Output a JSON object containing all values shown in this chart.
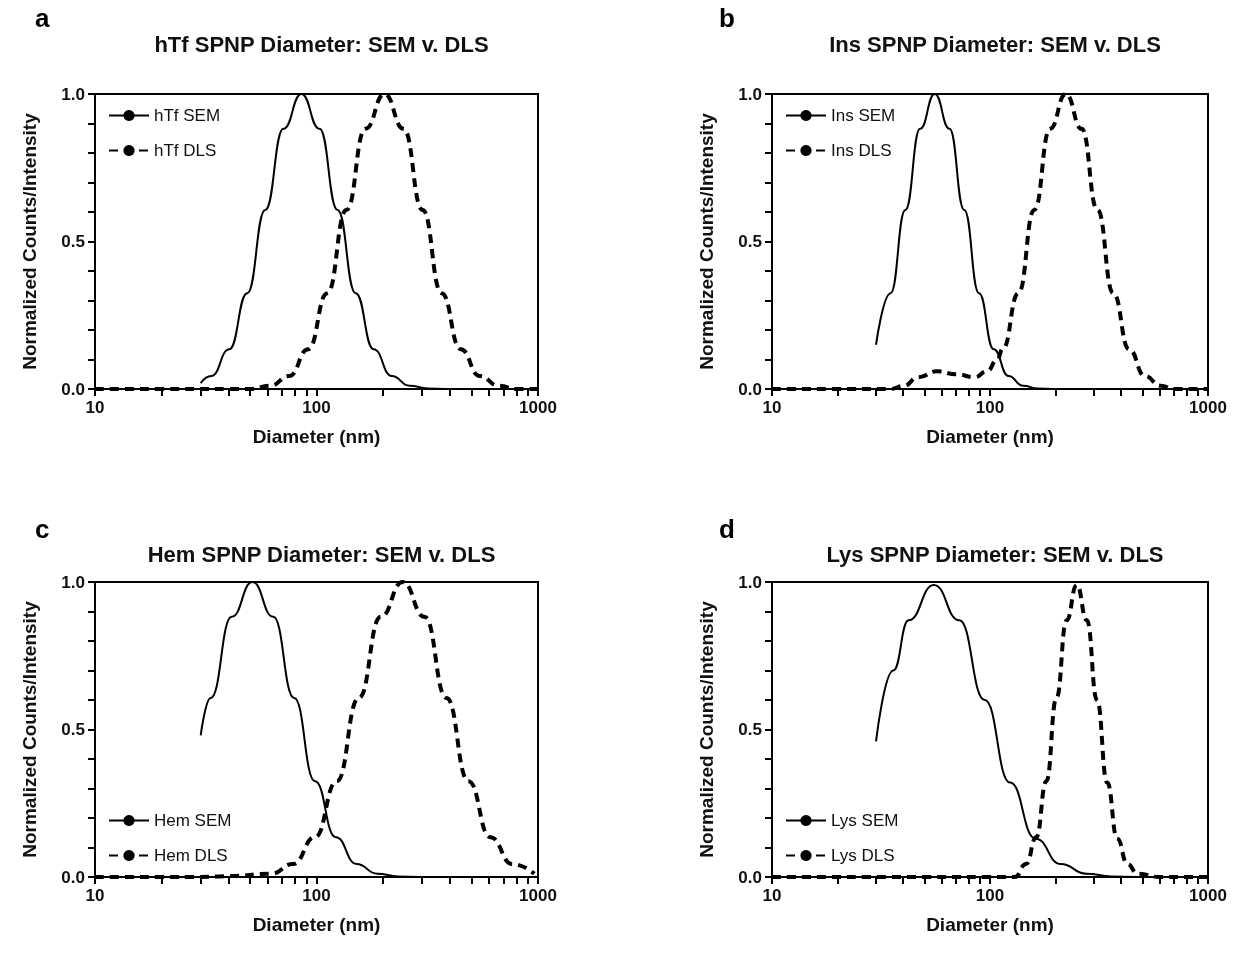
{
  "chart_data": [
    {
      "type": "line",
      "title": "hTf SPNP Diameter: SEM v. DLS",
      "annotations": [
        "a"
      ],
      "xlabel": "Diameter (nm)",
      "ylabel": "Normalized Counts/Intensity",
      "log": "x",
      "xlim": [
        10,
        1000
      ],
      "ylim": [
        0,
        1
      ],
      "xticks": [
        10,
        {
          "value": 20,
          "label": null
        },
        {
          "value": 30,
          "label": null
        },
        {
          "value": 40,
          "label": null
        },
        {
          "value": 50,
          "label": null
        },
        {
          "value": 60,
          "label": null
        },
        {
          "value": 70,
          "label": null
        },
        {
          "value": 80,
          "label": null
        },
        {
          "value": 90,
          "label": null
        },
        100,
        {
          "value": 200,
          "label": null
        },
        {
          "value": 300,
          "label": null
        },
        {
          "value": 400,
          "label": null
        },
        {
          "value": 500,
          "label": null
        },
        {
          "value": 600,
          "label": null
        },
        {
          "value": 700,
          "label": null
        },
        {
          "value": 800,
          "label": null
        },
        {
          "value": 900,
          "label": null
        },
        1000
      ],
      "yticks": [
        {
          "value": 0,
          "label": "0.0"
        },
        {
          "value": 0.1,
          "label": null
        },
        {
          "value": 0.2,
          "label": null
        },
        {
          "value": 0.3,
          "label": null
        },
        {
          "value": 0.4,
          "label": null
        },
        {
          "value": 0.5,
          "label": "0.5"
        },
        {
          "value": 0.6,
          "label": null
        },
        {
          "value": 0.7,
          "label": null
        },
        {
          "value": 0.8,
          "label": null
        },
        {
          "value": 0.9,
          "label": null
        },
        {
          "value": 1,
          "label": "1.0"
        }
      ],
      "legend": "top left",
      "marker": "none",
      "series": [
        {
          "name": "hTf SEM",
          "color": "#000000",
          "line_style": "solid",
          "x": [
            30,
            33.5,
            40.4,
            48.7,
            58.7,
            70.9,
            85.5,
            103.2,
            124.5,
            150.2,
            181.1,
            218.6,
            263.6,
            318,
            384
          ],
          "values": [
            0.02,
            0.044,
            0.135,
            0.325,
            0.607,
            0.882,
            1,
            0.882,
            0.607,
            0.325,
            0.135,
            0.044,
            0.011,
            0.002,
            0
          ]
        },
        {
          "name": "hTf DLS",
          "color": "#000000",
          "line_style": "dashed",
          "x": [
            10,
            20,
            40,
            50,
            61.8,
            75.3,
            91.8,
            111.9,
            136.5,
            166.3,
            202.8,
            247.2,
            301.3,
            367.3,
            447.7,
            545.8,
            665.3,
            800,
            1000
          ],
          "values": [
            0,
            0,
            0,
            0,
            0.011,
            0.044,
            0.135,
            0.325,
            0.607,
            0.882,
            1,
            0.882,
            0.607,
            0.325,
            0.135,
            0.044,
            0.011,
            0,
            0
          ]
        }
      ]
    },
    {
      "type": "line",
      "title": "Ins SPNP Diameter: SEM v. DLS",
      "annotations": [
        "b"
      ],
      "xlabel": "Diameter (nm)",
      "ylabel": "Normalized Counts/Intensity",
      "log": "x",
      "xlim": [
        10,
        1000
      ],
      "ylim": [
        0,
        1
      ],
      "xticks": [
        10,
        {
          "value": 20,
          "label": null
        },
        {
          "value": 30,
          "label": null
        },
        {
          "value": 40,
          "label": null
        },
        {
          "value": 50,
          "label": null
        },
        {
          "value": 60,
          "label": null
        },
        {
          "value": 70,
          "label": null
        },
        {
          "value": 80,
          "label": null
        },
        {
          "value": 90,
          "label": null
        },
        100,
        {
          "value": 200,
          "label": null
        },
        {
          "value": 300,
          "label": null
        },
        {
          "value": 400,
          "label": null
        },
        {
          "value": 500,
          "label": null
        },
        {
          "value": 600,
          "label": null
        },
        {
          "value": 700,
          "label": null
        },
        {
          "value": 800,
          "label": null
        },
        {
          "value": 900,
          "label": null
        },
        1000
      ],
      "yticks": [
        {
          "value": 0,
          "label": "0.0"
        },
        {
          "value": 0.1,
          "label": null
        },
        {
          "value": 0.2,
          "label": null
        },
        {
          "value": 0.3,
          "label": null
        },
        {
          "value": 0.4,
          "label": null
        },
        {
          "value": 0.5,
          "label": "0.5"
        },
        {
          "value": 0.6,
          "label": null
        },
        {
          "value": 0.7,
          "label": null
        },
        {
          "value": 0.8,
          "label": null
        },
        {
          "value": 0.9,
          "label": null
        },
        {
          "value": 1,
          "label": "1.0"
        }
      ],
      "legend": "top left",
      "marker": "none",
      "series": [
        {
          "name": "Ins SEM",
          "color": "#000000",
          "line_style": "solid",
          "x": [
            30,
            35,
            40.9,
            47.8,
            55.8,
            65.2,
            76.2,
            89,
            104,
            121.5,
            141.9,
            165.8,
            193.6
          ],
          "values": [
            0.15,
            0.325,
            0.607,
            0.882,
            1,
            0.882,
            0.607,
            0.325,
            0.135,
            0.044,
            0.011,
            0.002,
            0
          ]
        },
        {
          "name": "Ins DLS",
          "color": "#000000",
          "line_style": "dashed",
          "x": [
            10,
            20,
            35,
            40,
            47,
            57,
            70,
            85,
            97,
            108,
            114.3,
            135.1,
            159.6,
            188.6,
            222.8,
            263.3,
            311.2,
            367.7,
            434.5,
            513.4,
            606.7,
            700,
            1000
          ],
          "values": [
            0,
            0,
            0,
            0.01,
            0.04,
            0.06,
            0.05,
            0.04,
            0.06,
            0.1,
            0.135,
            0.325,
            0.607,
            0.882,
            1,
            0.882,
            0.607,
            0.325,
            0.135,
            0.044,
            0.011,
            0,
            0
          ]
        }
      ]
    },
    {
      "type": "line",
      "title": "Hem SPNP Diameter: SEM v. DLS",
      "annotations": [
        "c"
      ],
      "xlabel": "Diameter (nm)",
      "ylabel": "Normalized Counts/Intensity",
      "log": "x",
      "xlim": [
        10,
        1000
      ],
      "ylim": [
        0,
        1
      ],
      "xticks": [
        10,
        {
          "value": 20,
          "label": null
        },
        {
          "value": 30,
          "label": null
        },
        {
          "value": 40,
          "label": null
        },
        {
          "value": 50,
          "label": null
        },
        {
          "value": 60,
          "label": null
        },
        {
          "value": 70,
          "label": null
        },
        {
          "value": 80,
          "label": null
        },
        {
          "value": 90,
          "label": null
        },
        100,
        {
          "value": 200,
          "label": null
        },
        {
          "value": 300,
          "label": null
        },
        {
          "value": 400,
          "label": null
        },
        {
          "value": 500,
          "label": null
        },
        {
          "value": 600,
          "label": null
        },
        {
          "value": 700,
          "label": null
        },
        {
          "value": 800,
          "label": null
        },
        {
          "value": 900,
          "label": null
        },
        1000
      ],
      "yticks": [
        {
          "value": 0,
          "label": "0.0"
        },
        {
          "value": 0.1,
          "label": null
        },
        {
          "value": 0.2,
          "label": null
        },
        {
          "value": 0.3,
          "label": null
        },
        {
          "value": 0.4,
          "label": null
        },
        {
          "value": 0.5,
          "label": "0.5"
        },
        {
          "value": 0.6,
          "label": null
        },
        {
          "value": 0.7,
          "label": null
        },
        {
          "value": 0.8,
          "label": null
        },
        {
          "value": 0.9,
          "label": null
        },
        {
          "value": 1,
          "label": "1.0"
        }
      ],
      "legend": "bottom left",
      "marker": "none",
      "series": [
        {
          "name": "Hem SEM",
          "color": "#000000",
          "line_style": "solid",
          "x": [
            30,
            33.3,
            41.4,
            51.4,
            63.8,
            79.3,
            98.4,
            122.2,
            151.7,
            188.4,
            233.9,
            290.4
          ],
          "values": [
            0.48,
            0.607,
            0.882,
            1,
            0.882,
            0.607,
            0.325,
            0.135,
            0.044,
            0.011,
            0.002,
            0
          ]
        },
        {
          "name": "Hem DLS",
          "color": "#000000",
          "line_style": "dashed",
          "x": [
            10,
            20,
            30,
            40,
            62.4,
            78.3,
            98.4,
            123.6,
            155.2,
            195,
            244.9,
            307.6,
            386.4,
            485.3,
            609.5,
            765.6,
            961.6
          ],
          "values": [
            0,
            0,
            0,
            0.003,
            0.011,
            0.044,
            0.135,
            0.325,
            0.607,
            0.882,
            1,
            0.882,
            0.607,
            0.325,
            0.135,
            0.044,
            0.011
          ]
        }
      ]
    },
    {
      "type": "line",
      "title": "Lys SPNP Diameter: SEM v. DLS",
      "annotations": [
        "d"
      ],
      "xlabel": "Diameter (nm)",
      "ylabel": "Normalized Counts/Intensity",
      "log": "x",
      "xlim": [
        10,
        1000
      ],
      "ylim": [
        0,
        1
      ],
      "xticks": [
        10,
        {
          "value": 20,
          "label": null
        },
        {
          "value": 30,
          "label": null
        },
        {
          "value": 40,
          "label": null
        },
        {
          "value": 50,
          "label": null
        },
        {
          "value": 60,
          "label": null
        },
        {
          "value": 70,
          "label": null
        },
        {
          "value": 80,
          "label": null
        },
        {
          "value": 90,
          "label": null
        },
        100,
        {
          "value": 200,
          "label": null
        },
        {
          "value": 300,
          "label": null
        },
        {
          "value": 400,
          "label": null
        },
        {
          "value": 500,
          "label": null
        },
        {
          "value": 600,
          "label": null
        },
        {
          "value": 700,
          "label": null
        },
        {
          "value": 800,
          "label": null
        },
        {
          "value": 900,
          "label": null
        },
        1000
      ],
      "yticks": [
        {
          "value": 0,
          "label": "0.0"
        },
        {
          "value": 0.1,
          "label": null
        },
        {
          "value": 0.2,
          "label": null
        },
        {
          "value": 0.3,
          "label": null
        },
        {
          "value": 0.4,
          "label": null
        },
        {
          "value": 0.5,
          "label": "0.5"
        },
        {
          "value": 0.6,
          "label": null
        },
        {
          "value": 0.7,
          "label": null
        },
        {
          "value": 0.8,
          "label": null
        },
        {
          "value": 0.9,
          "label": null
        },
        {
          "value": 1,
          "label": "1.0"
        }
      ],
      "legend": "bottom left",
      "marker": "none",
      "series": [
        {
          "name": "Lys SEM",
          "color": "#000000",
          "line_style": "solid",
          "x": [
            30,
            36,
            42.3,
            55.3,
            72.3,
            94.6,
            123.6,
            161.8,
            211.3,
            276.7,
            361.4,
            473
          ],
          "values": [
            0.46,
            0.7,
            0.87,
            0.99,
            0.87,
            0.6,
            0.32,
            0.13,
            0.044,
            0.011,
            0.002,
            0
          ]
        },
        {
          "name": "Lys DLS",
          "color": "#000000",
          "line_style": "dashed",
          "x": [
            10,
            50,
            100,
            130,
            146.4,
            163,
            181.4,
            201.8,
            224.6,
            250,
            278.3,
            309.7,
            344.7,
            383.7,
            427,
            475.3,
            600,
            1000
          ],
          "values": [
            0,
            0,
            0,
            0,
            0.044,
            0.135,
            0.325,
            0.607,
            0.87,
            0.99,
            0.87,
            0.6,
            0.32,
            0.13,
            0.044,
            0.011,
            0,
            0
          ]
        }
      ]
    }
  ]
}
